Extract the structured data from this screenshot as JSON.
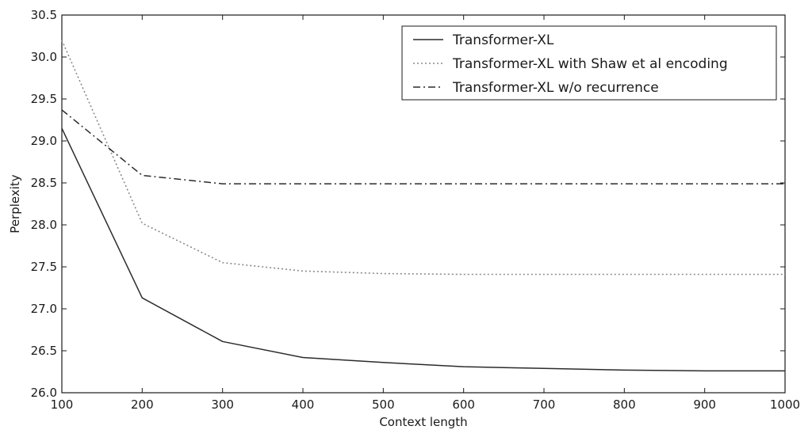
{
  "chart_data": {
    "type": "line",
    "title": "",
    "xlabel": "Context length",
    "ylabel": "Perplexity",
    "xlim": [
      100,
      1000
    ],
    "ylim": [
      26.0,
      30.5
    ],
    "x_ticks": [
      "100",
      "200",
      "300",
      "400",
      "500",
      "600",
      "700",
      "800",
      "900",
      "1000"
    ],
    "y_ticks": [
      "26.0",
      "26.5",
      "27.0",
      "27.5",
      "28.0",
      "28.5",
      "29.0",
      "29.5",
      "30.0",
      "30.5"
    ],
    "grid": false,
    "legend_position": "top-right",
    "series": [
      {
        "name": "Transformer-XL",
        "style": "solid",
        "color": "#2b2b2b",
        "x": [
          100,
          200,
          300,
          400,
          500,
          600,
          700,
          800,
          900,
          1000
        ],
        "values": [
          29.15,
          27.13,
          26.61,
          26.42,
          26.36,
          26.31,
          26.29,
          26.27,
          26.26,
          26.26
        ]
      },
      {
        "name": "Transformer-XL with Shaw et al encoding",
        "style": "dotted",
        "color": "#8a8a8a",
        "x": [
          100,
          200,
          300,
          400,
          500,
          600,
          700,
          800,
          900,
          1000
        ],
        "values": [
          30.2,
          28.02,
          27.55,
          27.45,
          27.42,
          27.41,
          27.41,
          27.41,
          27.41,
          27.41
        ]
      },
      {
        "name": "Transformer-XL w/o recurrence",
        "style": "dashdot",
        "color": "#2b2b2b",
        "x": [
          100,
          200,
          300,
          400,
          500,
          600,
          700,
          800,
          900,
          1000
        ],
        "values": [
          29.37,
          28.59,
          28.49,
          28.49,
          28.49,
          28.49,
          28.49,
          28.49,
          28.49,
          28.49
        ]
      }
    ]
  }
}
